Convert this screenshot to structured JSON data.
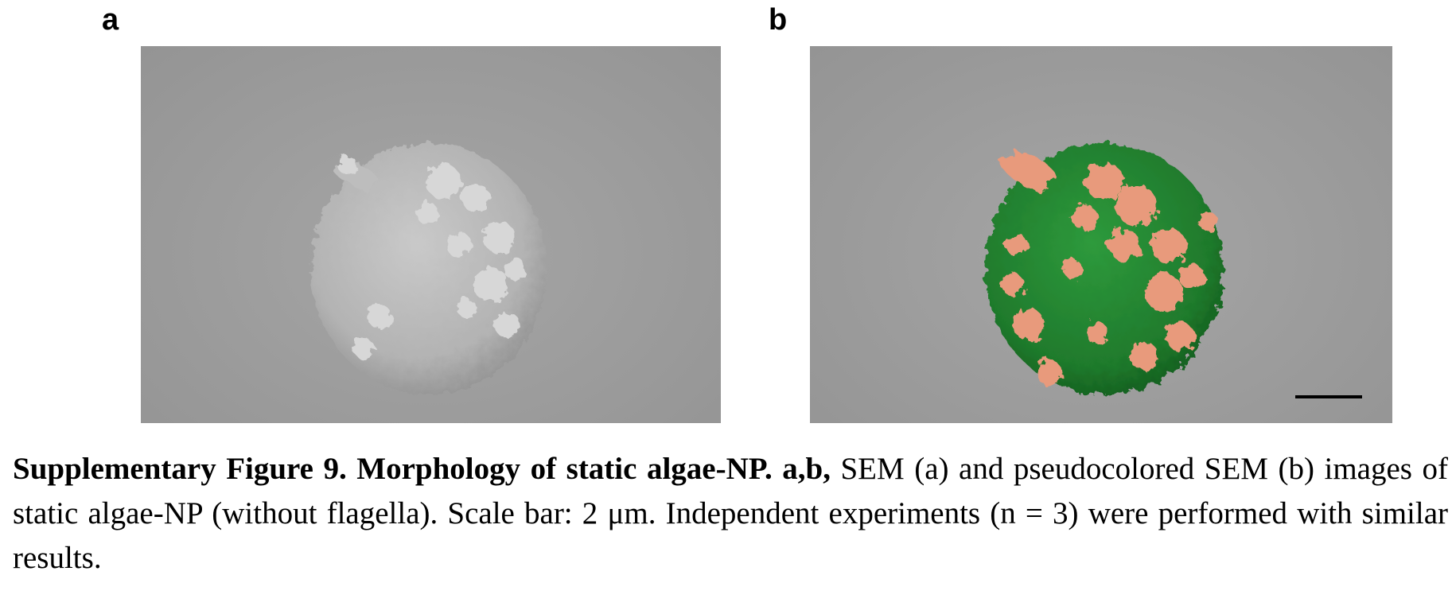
{
  "panels": [
    {
      "letter": "a"
    },
    {
      "letter": "b"
    }
  ],
  "colors": {
    "background_gray": "#9c9c9c",
    "cell_gray": "#bcbcbc",
    "algae_green": "#1f7a2c",
    "np_salmon": "#e89a7c",
    "scale_bar": "#000000"
  },
  "caption": {
    "bold_part": "Supplementary Figure 9. Morphology of static algae-NP. a,b,",
    "text_part": " SEM (a) and pseudocolored SEM (b) images of static algae-NP (without flagella). Scale bar: 2 μm. Independent experiments (n = 3) were performed with similar results."
  }
}
